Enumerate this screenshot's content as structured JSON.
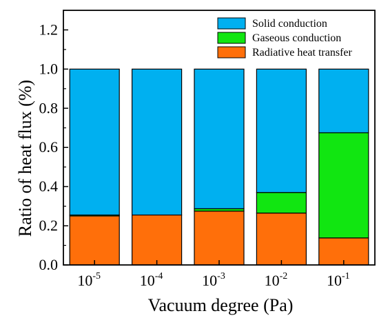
{
  "chart_data": {
    "type": "bar",
    "stacked": true,
    "title": "",
    "xlabel": "Vacuum degree (Pa)",
    "ylabel": "Ratio of heat flux (%)",
    "categories": [
      {
        "base": "10",
        "exp": "-5"
      },
      {
        "base": "10",
        "exp": "-4"
      },
      {
        "base": "10",
        "exp": "-3"
      },
      {
        "base": "10",
        "exp": "-2"
      },
      {
        "base": "10",
        "exp": "-1"
      }
    ],
    "series": [
      {
        "name": "Radiative heat transfer",
        "color": "#ff6f0a",
        "values": [
          0.25,
          0.255,
          0.275,
          0.265,
          0.138
        ]
      },
      {
        "name": "Gaseous conduction",
        "color": "#11e611",
        "values": [
          0.005,
          0.0,
          0.012,
          0.105,
          0.537
        ]
      },
      {
        "name": "Solid conduction",
        "color": "#00b0f0",
        "values": [
          0.745,
          0.745,
          0.713,
          0.63,
          0.325
        ]
      }
    ],
    "legend_order": [
      2,
      1,
      0
    ],
    "yticks": [
      "0.0",
      "0.2",
      "0.4",
      "0.6",
      "0.8",
      "1.0",
      "1.2"
    ],
    "ylim": [
      0,
      1.3
    ],
    "grid": false,
    "legend_position": "top-right"
  }
}
